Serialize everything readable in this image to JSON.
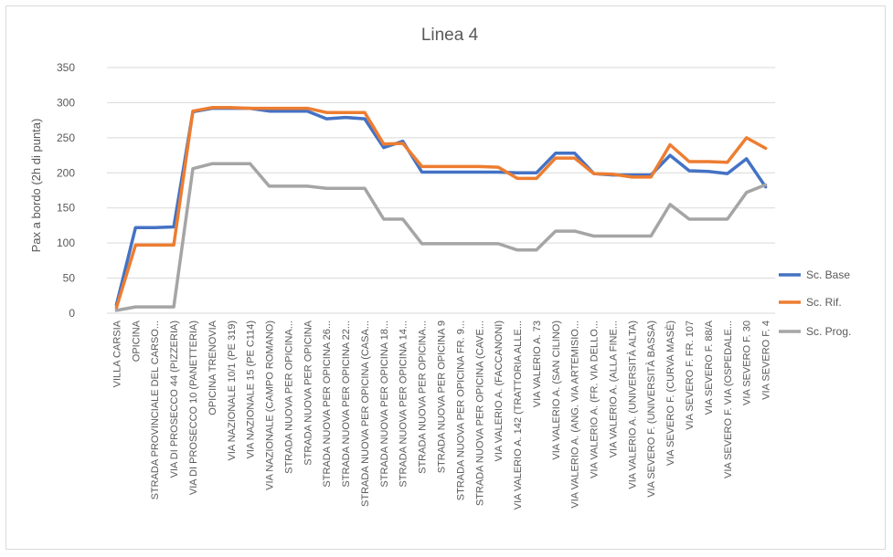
{
  "chart_data": {
    "type": "line",
    "title": "Linea 4",
    "xlabel": "",
    "ylabel": "Pax a bordo (2h di punta)",
    "ylim": [
      0,
      350
    ],
    "yticks": [
      0,
      50,
      100,
      150,
      200,
      250,
      300,
      350
    ],
    "grid": true,
    "legend_position": "right",
    "categories": [
      "VILLA CARSIA",
      "OPICINA",
      "STRADA PROVINCIALE DEL CARSO...",
      "VIA DI PROSECCO 44 (PIZZERIA)",
      "VIA DI PROSECCO 10 (PANETTERIA)",
      "OPICINA TRENOVIA",
      "VIA NAZIONALE 10/1 (PE 319)",
      "VIA NAZIONALE 15 (PE C114)",
      "VIA NAZIONALE (CAMPO ROMANO)",
      "STRADA NUOVA PER OPICINA...",
      "STRADA NUOVA PER OPICINA",
      "STRADA NUOVA PER OPICINA 26...",
      "STRADA NUOVA PER OPICINA 22...",
      "STRADA NUOVA PER OPICINA (CASA...",
      "STRADA NUOVA PER OPICINA 18...",
      "STRADA NUOVA PER OPICINA 14...",
      "STRADA NUOVA PER OPICINA...",
      "STRADA NUOVA PER OPICINA 9",
      "STRADA NUOVA PER OPICINA FR. 9...",
      "STRADA NUOVA PER OPICINA (CAVE...",
      "VIA VALERIO A. (FACCANONI)",
      "VIA VALERIO A. 142 (TRATTORIA ALLE...",
      "VIA VALERIO A. 73",
      "VIA VALERIO A. (SAN CILINO)",
      "VIA VALERIO A. (ANG. VIA ARTEMISIO...",
      "VIA VALERIO A. (FR. VIA DELLO...",
      "VIA VALERIO A. (ALLA FINE...",
      "VIA VALERIO A. (UNIVERSITÀ ALTA)",
      "VIA SEVERO F. (UNIVERSITÀ BASSA)",
      "VIA SEVERO F. (CURVA MASÈ)",
      "VIA SEVERO F. FR. 107",
      "VIA SEVERO F. 88/A",
      "VIA SEVERO F. VIA (OSPEDALE...",
      "VIA SEVERO F. 30",
      "VIA SEVERO F. 4"
    ],
    "series": [
      {
        "name": "Sc. Base",
        "color": "#4472c4",
        "values": [
          12,
          122,
          122,
          123,
          287,
          292,
          292,
          292,
          288,
          288,
          288,
          277,
          279,
          277,
          236,
          245,
          201,
          201,
          201,
          201,
          201,
          200,
          200,
          228,
          228,
          199,
          197,
          197,
          197,
          225,
          203,
          202,
          199,
          220,
          180
        ]
      },
      {
        "name": "Sc. Rif.",
        "color": "#ed7d31",
        "values": [
          8,
          97,
          97,
          97,
          288,
          293,
          293,
          292,
          292,
          292,
          292,
          286,
          286,
          286,
          241,
          242,
          209,
          209,
          209,
          209,
          208,
          192,
          192,
          221,
          221,
          199,
          198,
          194,
          194,
          240,
          216,
          216,
          215,
          250,
          235
        ]
      },
      {
        "name": "Sc. Prog.",
        "color": "#a5a5a5",
        "values": [
          4,
          9,
          9,
          9,
          206,
          213,
          213,
          213,
          181,
          181,
          181,
          178,
          178,
          178,
          134,
          134,
          99,
          99,
          99,
          99,
          99,
          90,
          90,
          117,
          117,
          110,
          110,
          110,
          110,
          155,
          134,
          134,
          134,
          172,
          183
        ]
      }
    ]
  }
}
